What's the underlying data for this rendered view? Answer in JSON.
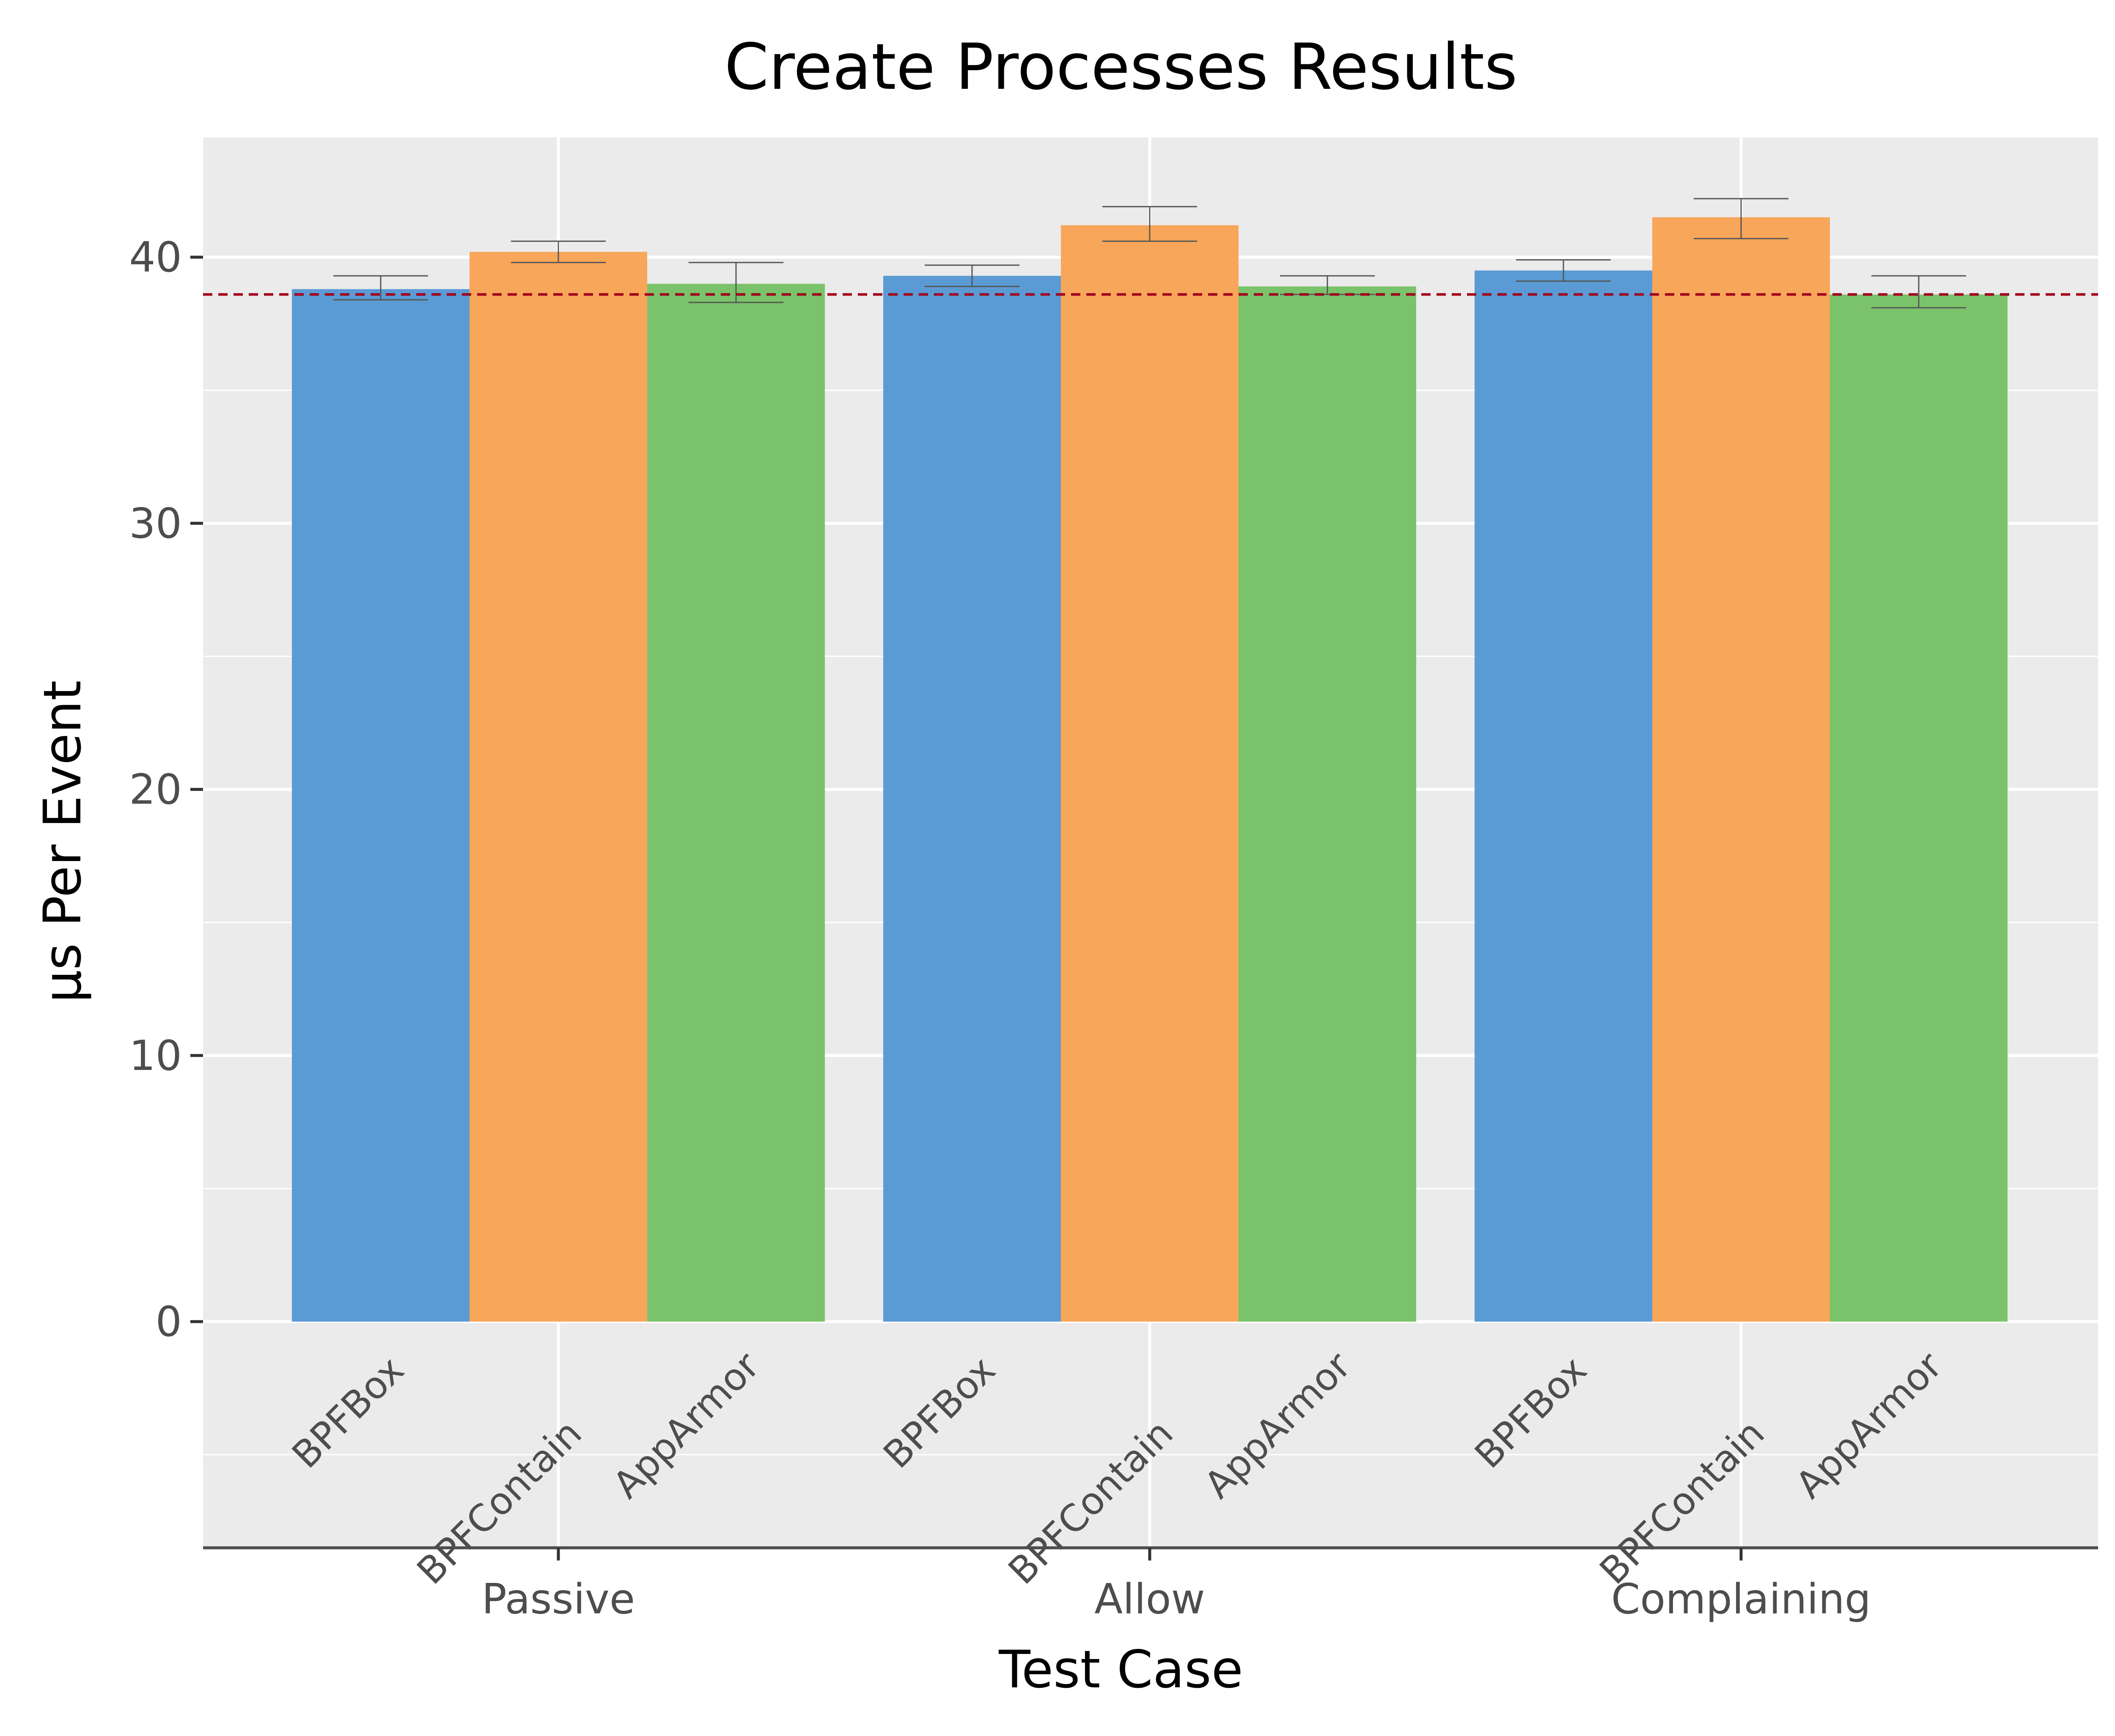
{
  "chart_data": {
    "type": "bar",
    "title": "Create Processes Results",
    "xlabel": "Test Case",
    "ylabel": "µs Per Event",
    "categories": [
      "Passive",
      "Allow",
      "Complaining"
    ],
    "series": [
      {
        "name": "BPFBox",
        "color": "#5b9bd5",
        "values": [
          38.8,
          39.3,
          39.5
        ],
        "err_low": [
          38.4,
          38.9,
          39.1
        ],
        "err_high": [
          39.3,
          39.7,
          39.9
        ]
      },
      {
        "name": "BPFContain",
        "color": "#f8a65a",
        "values": [
          40.2,
          41.2,
          41.5
        ],
        "err_low": [
          39.8,
          40.6,
          40.7
        ],
        "err_high": [
          40.6,
          41.9,
          42.2
        ]
      },
      {
        "name": "AppArmor",
        "color": "#7ac36a",
        "values": [
          39.0,
          38.9,
          38.6
        ],
        "err_low": [
          38.3,
          38.6,
          38.1
        ],
        "err_high": [
          39.8,
          39.3,
          39.3
        ]
      }
    ],
    "reference_line": {
      "value": 38.6,
      "style": "dashed",
      "color": "#a0001e"
    },
    "ylim": [
      -8.5,
      44.5
    ],
    "yticks": [
      0,
      10,
      20,
      30,
      40
    ],
    "grid": true,
    "colors": {
      "panel": "#ebebeb",
      "grid": "#ffffff",
      "errorbar": "#555555"
    }
  }
}
